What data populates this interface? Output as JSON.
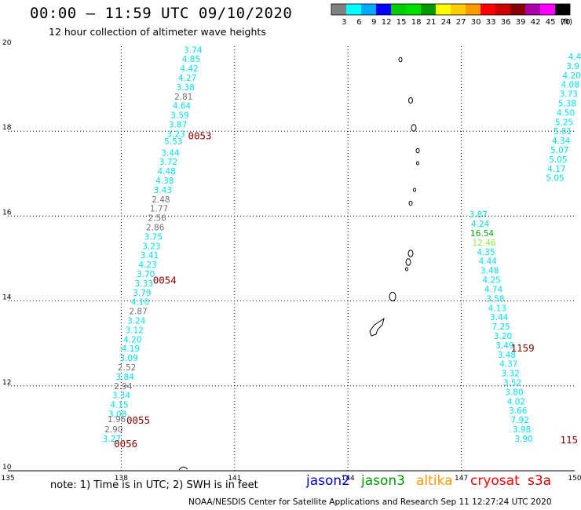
{
  "header": {
    "title": "00:00 – 11:59 UTC 09/10/2020",
    "subtitle": "12 hour collection of altimeter wave heights"
  },
  "legend": {
    "unit_label": "(ft)",
    "bins": [
      {
        "label": "3",
        "color": "#808080"
      },
      {
        "label": "6",
        "color": "#00ffff"
      },
      {
        "label": "9",
        "color": "#00aaff"
      },
      {
        "label": "12",
        "color": "#0000ff"
      },
      {
        "label": "15",
        "color": "#00cc00"
      },
      {
        "label": "18",
        "color": "#00dd00"
      },
      {
        "label": "21",
        "color": "#009900"
      },
      {
        "label": "24",
        "color": "#ffff00"
      },
      {
        "label": "27",
        "color": "#ffcc00"
      },
      {
        "label": "30",
        "color": "#ff9900"
      },
      {
        "label": "33",
        "color": "#ff0000"
      },
      {
        "label": "36",
        "color": "#cc0000"
      },
      {
        "label": "39",
        "color": "#880000"
      },
      {
        "label": "42",
        "color": "#aa00aa"
      },
      {
        "label": "45",
        "color": "#ff00ff"
      },
      {
        "label": "70",
        "color": "#000000"
      }
    ]
  },
  "colors": {
    "cyan": "#00e0e8",
    "gray": "#707070",
    "green": "#00aa00",
    "lightgreen": "#88ee44",
    "time_label": "#880000",
    "jason2": "#0000cc",
    "jason3": "#009900",
    "altika": "#ff9900",
    "cryosat": "#ff0000",
    "s3a": "#cc0000"
  },
  "chart_data": {
    "type": "scatter",
    "xlim": [
      135,
      150
    ],
    "ylim": [
      10,
      20
    ],
    "x_ticks": [
      "135",
      "138",
      "141",
      "144",
      "147",
      "150"
    ],
    "y_ticks": [
      "10",
      "12",
      "14",
      "16",
      "18",
      "20"
    ],
    "grid": true,
    "swh_unit": "ft",
    "tracks": [
      {
        "points": [
          {
            "x": 139.9,
            "y": 19.92,
            "v": "3.74",
            "c": "cyan"
          },
          {
            "x": 139.85,
            "y": 19.7,
            "v": "4.85",
            "c": "cyan"
          },
          {
            "x": 139.8,
            "y": 19.48,
            "v": "4.42",
            "c": "cyan"
          },
          {
            "x": 139.75,
            "y": 19.26,
            "v": "4.27",
            "c": "cyan"
          },
          {
            "x": 139.7,
            "y": 19.04,
            "v": "3.38",
            "c": "cyan"
          },
          {
            "x": 139.65,
            "y": 18.82,
            "v": "2.81",
            "c": "gray"
          },
          {
            "x": 139.6,
            "y": 18.6,
            "v": "4.64",
            "c": "cyan"
          },
          {
            "x": 139.55,
            "y": 18.38,
            "v": "3.59",
            "c": "cyan"
          },
          {
            "x": 139.5,
            "y": 18.16,
            "v": "3.87",
            "c": "cyan"
          },
          {
            "x": 139.45,
            "y": 17.94,
            "v": "3.23",
            "c": "cyan"
          },
          {
            "x": 139.38,
            "y": 17.76,
            "v": "5.53",
            "c": "cyan"
          },
          {
            "x": 139.3,
            "y": 17.5,
            "v": "3.44",
            "c": "cyan"
          },
          {
            "x": 139.25,
            "y": 17.28,
            "v": "3.72",
            "c": "cyan"
          },
          {
            "x": 139.2,
            "y": 17.06,
            "v": "4.48",
            "c": "cyan"
          },
          {
            "x": 139.15,
            "y": 16.84,
            "v": "4.38",
            "c": "cyan"
          },
          {
            "x": 139.1,
            "y": 16.62,
            "v": "3.43",
            "c": "cyan"
          },
          {
            "x": 139.05,
            "y": 16.4,
            "v": "2.48",
            "c": "gray"
          },
          {
            "x": 139.0,
            "y": 16.18,
            "v": "1.77",
            "c": "gray"
          },
          {
            "x": 138.95,
            "y": 15.96,
            "v": "2.56",
            "c": "gray"
          },
          {
            "x": 138.9,
            "y": 15.74,
            "v": "2.86",
            "c": "gray"
          },
          {
            "x": 138.85,
            "y": 15.52,
            "v": "3.75",
            "c": "cyan"
          },
          {
            "x": 138.8,
            "y": 15.3,
            "v": "3.23",
            "c": "cyan"
          },
          {
            "x": 138.75,
            "y": 15.08,
            "v": "3.41",
            "c": "cyan"
          },
          {
            "x": 138.7,
            "y": 14.86,
            "v": "4.23",
            "c": "cyan"
          },
          {
            "x": 138.65,
            "y": 14.64,
            "v": "3.70",
            "c": "cyan"
          },
          {
            "x": 138.6,
            "y": 14.42,
            "v": "3.33",
            "c": "cyan"
          },
          {
            "x": 138.55,
            "y": 14.2,
            "v": "3.79",
            "c": "cyan"
          },
          {
            "x": 138.5,
            "y": 13.98,
            "v": "4.10",
            "c": "cyan"
          },
          {
            "x": 138.45,
            "y": 13.76,
            "v": "2.87",
            "c": "gray"
          },
          {
            "x": 138.4,
            "y": 13.54,
            "v": "3.24",
            "c": "cyan"
          },
          {
            "x": 138.35,
            "y": 13.32,
            "v": "3.12",
            "c": "cyan"
          },
          {
            "x": 138.3,
            "y": 13.1,
            "v": "4.20",
            "c": "cyan"
          },
          {
            "x": 138.25,
            "y": 12.88,
            "v": "4.19",
            "c": "cyan"
          },
          {
            "x": 138.2,
            "y": 12.66,
            "v": "3.09",
            "c": "cyan"
          },
          {
            "x": 138.15,
            "y": 12.44,
            "v": "2.52",
            "c": "gray"
          },
          {
            "x": 138.1,
            "y": 12.22,
            "v": "3.84",
            "c": "cyan"
          },
          {
            "x": 138.05,
            "y": 12.0,
            "v": "2.94",
            "c": "gray"
          },
          {
            "x": 138.0,
            "y": 11.78,
            "v": "3.34",
            "c": "cyan"
          },
          {
            "x": 137.95,
            "y": 11.56,
            "v": "4.15",
            "c": "cyan"
          },
          {
            "x": 137.9,
            "y": 11.34,
            "v": "3.08",
            "c": "cyan"
          },
          {
            "x": 137.88,
            "y": 11.22,
            "v": "1.96",
            "c": "gray"
          },
          {
            "x": 137.8,
            "y": 10.98,
            "v": "2.90",
            "c": "gray"
          },
          {
            "x": 137.75,
            "y": 10.76,
            "v": "3.27",
            "c": "cyan"
          }
        ]
      },
      {
        "points": [
          {
            "x": 147.45,
            "y": 16.04,
            "v": "3.87",
            "c": "cyan"
          },
          {
            "x": 147.5,
            "y": 15.82,
            "v": "4.24",
            "c": "cyan"
          },
          {
            "x": 147.55,
            "y": 15.6,
            "v": "16.54",
            "c": "green"
          },
          {
            "x": 147.6,
            "y": 15.38,
            "v": "12.46",
            "c": "lightgreen"
          },
          {
            "x": 147.65,
            "y": 15.16,
            "v": "4.35",
            "c": "cyan"
          },
          {
            "x": 147.7,
            "y": 14.94,
            "v": "4.44",
            "c": "cyan"
          },
          {
            "x": 147.75,
            "y": 14.72,
            "v": "3.48",
            "c": "cyan"
          },
          {
            "x": 147.8,
            "y": 14.5,
            "v": "4.25",
            "c": "cyan"
          },
          {
            "x": 147.85,
            "y": 14.28,
            "v": "4.74",
            "c": "cyan"
          },
          {
            "x": 147.9,
            "y": 14.06,
            "v": "3.58",
            "c": "cyan"
          },
          {
            "x": 147.95,
            "y": 13.84,
            "v": "4.13",
            "c": "cyan"
          },
          {
            "x": 148.0,
            "y": 13.62,
            "v": "3.44",
            "c": "cyan"
          },
          {
            "x": 148.05,
            "y": 13.4,
            "v": "7.25",
            "c": "cyan"
          },
          {
            "x": 148.1,
            "y": 13.18,
            "v": "3.20",
            "c": "cyan"
          },
          {
            "x": 148.15,
            "y": 12.96,
            "v": "3.49",
            "c": "cyan"
          },
          {
            "x": 148.2,
            "y": 12.74,
            "v": "3.48",
            "c": "cyan"
          },
          {
            "x": 148.25,
            "y": 12.52,
            "v": "4.37",
            "c": "cyan"
          },
          {
            "x": 148.3,
            "y": 12.3,
            "v": "3.32",
            "c": "cyan"
          },
          {
            "x": 148.35,
            "y": 12.08,
            "v": "3.52",
            "c": "cyan"
          },
          {
            "x": 148.4,
            "y": 11.86,
            "v": "3.80",
            "c": "cyan"
          },
          {
            "x": 148.45,
            "y": 11.64,
            "v": "4.02",
            "c": "cyan"
          },
          {
            "x": 148.5,
            "y": 11.42,
            "v": "3.66",
            "c": "cyan"
          },
          {
            "x": 148.55,
            "y": 11.2,
            "v": "7.92",
            "c": "cyan"
          },
          {
            "x": 148.6,
            "y": 10.98,
            "v": "3.98",
            "c": "cyan"
          },
          {
            "x": 148.65,
            "y": 10.76,
            "v": "3.90",
            "c": "cyan"
          }
        ]
      },
      {
        "points": [
          {
            "x": 150.0,
            "y": 19.76,
            "v": "4.4",
            "c": "cyan"
          },
          {
            "x": 149.95,
            "y": 19.54,
            "v": "3.9",
            "c": "cyan"
          },
          {
            "x": 149.92,
            "y": 19.32,
            "v": "4.20",
            "c": "cyan"
          },
          {
            "x": 149.88,
            "y": 19.1,
            "v": "4.08",
            "c": "cyan"
          },
          {
            "x": 149.84,
            "y": 18.88,
            "v": "3.73",
            "c": "cyan"
          },
          {
            "x": 149.8,
            "y": 18.66,
            "v": "5.38",
            "c": "cyan"
          },
          {
            "x": 149.76,
            "y": 18.44,
            "v": "4.50",
            "c": "cyan"
          },
          {
            "x": 149.72,
            "y": 18.22,
            "v": "5.25",
            "c": "cyan"
          },
          {
            "x": 149.68,
            "y": 18.0,
            "v": "5.81",
            "c": "cyan"
          },
          {
            "x": 149.64,
            "y": 17.78,
            "v": "4.34",
            "c": "cyan"
          },
          {
            "x": 149.6,
            "y": 17.56,
            "v": "5.07",
            "c": "cyan"
          },
          {
            "x": 149.56,
            "y": 17.34,
            "v": "5.05",
            "c": "cyan"
          },
          {
            "x": 149.52,
            "y": 17.12,
            "v": "4.17",
            "c": "cyan"
          },
          {
            "x": 149.48,
            "y": 16.9,
            "v": "5.05",
            "c": "cyan"
          }
        ]
      }
    ],
    "time_labels": [
      {
        "x": 140.08,
        "y": 17.9,
        "text": "0053"
      },
      {
        "x": 139.15,
        "y": 14.5,
        "text": "0054"
      },
      {
        "x": 138.45,
        "y": 11.2,
        "text": "0055"
      },
      {
        "x": 138.12,
        "y": 10.65,
        "text": "0056"
      },
      {
        "x": 148.62,
        "y": 12.9,
        "text": "1159"
      },
      {
        "x": 149.85,
        "y": 10.74,
        "text": "115"
      }
    ]
  },
  "footer": {
    "note": "note:  1) Time is in UTC;  2) SWH is in feet",
    "satellites": {
      "jason2": "jason2",
      "jason3": "jason3",
      "altika": "altika",
      "cryosat": "cryosat",
      "s3a": "s3a"
    },
    "credit": "NOAA/NESDIS Center for Satellite Applications and Research    Sep 11 12:27:24 UTC 2020"
  }
}
